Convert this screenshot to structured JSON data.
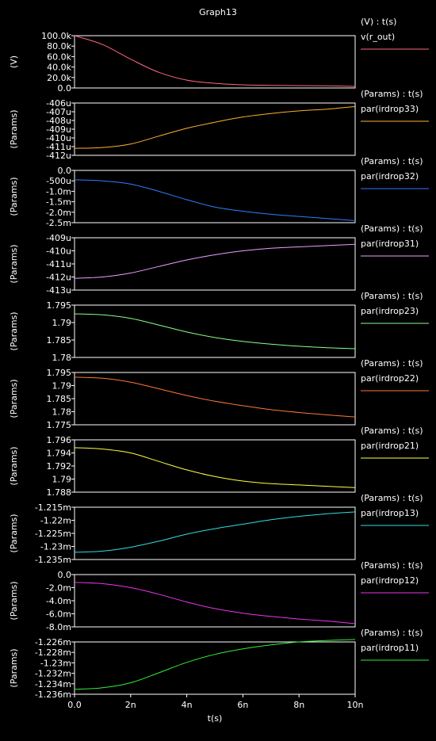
{
  "window": {
    "title": "Graph13"
  },
  "chart_data": {
    "type": "line",
    "title": "Graph13",
    "xlabel": "t(s)",
    "xlim": [
      0,
      10
    ],
    "x_ticks": [
      "0.0",
      "2n",
      "4n",
      "6n",
      "8n",
      "10n"
    ],
    "grid": false,
    "legend_position": "right",
    "panels": [
      {
        "header": "(V) : t(s)",
        "ylabel": "(V)",
        "series_name": "v(r_out)",
        "color": "#ff6680",
        "ylim": [
          0,
          100000
        ],
        "y_ticks": [
          "100.0k",
          "80.0k",
          "60.0k",
          "40.0k",
          "20.0k",
          "0.0"
        ],
        "x": [
          0,
          1,
          2,
          3,
          4,
          5,
          6,
          7,
          8,
          9,
          10
        ],
        "y": [
          100000,
          83000,
          55000,
          30000,
          15000,
          9000,
          6000,
          5000,
          4500,
          4200,
          3000
        ]
      },
      {
        "header": "(Params) : t(s)",
        "ylabel": "(Params)",
        "series_name": "par(irdrop33)",
        "color": "#ffb030",
        "ylim": [
          -412,
          -406
        ],
        "y_ticks": [
          "-406u",
          "-407u",
          "-408u",
          "-409u",
          "-410u",
          "-411u",
          "-412u"
        ],
        "x": [
          0,
          1,
          2,
          3,
          4,
          5,
          6,
          7,
          8,
          9,
          10
        ],
        "y": [
          -411.2,
          -411.1,
          -410.7,
          -409.8,
          -408.9,
          -408.2,
          -407.6,
          -407.2,
          -406.9,
          -406.7,
          -406.4
        ]
      },
      {
        "header": "(Params) : t(s)",
        "ylabel": "(Params)",
        "series_name": "par(irdrop32)",
        "color": "#2f7dff",
        "ylim": [
          -2.5,
          0.0
        ],
        "y_ticks": [
          "0.0",
          "-500u",
          "-1.0m",
          "-1.5m",
          "-2.0m",
          "-2.5m"
        ],
        "x": [
          0,
          1,
          2,
          3,
          4,
          5,
          6,
          7,
          8,
          9,
          10
        ],
        "y": [
          -0.45,
          -0.5,
          -0.65,
          -1.0,
          -1.4,
          -1.75,
          -1.95,
          -2.1,
          -2.2,
          -2.3,
          -2.4
        ]
      },
      {
        "header": "(Params) : t(s)",
        "ylabel": "(Params)",
        "series_name": "par(irdrop31)",
        "color": "#e8a0ff",
        "ylim": [
          -413,
          -409
        ],
        "y_ticks": [
          "-409u",
          "-410u",
          "-411u",
          "-412u",
          "-413u"
        ],
        "x": [
          0,
          1,
          2,
          3,
          4,
          5,
          6,
          7,
          8,
          9,
          10
        ],
        "y": [
          -412.1,
          -412.0,
          -411.7,
          -411.2,
          -410.7,
          -410.3,
          -410.0,
          -409.8,
          -409.7,
          -409.6,
          -409.5
        ]
      },
      {
        "header": "(Params) : t(s)",
        "ylabel": "(Params)",
        "series_name": "par(irdrop23)",
        "color": "#88ff88",
        "ylim": [
          1.78,
          1.795
        ],
        "y_ticks": [
          "1.795",
          "1.79",
          "1.785",
          "1.78"
        ],
        "x": [
          0,
          1,
          2,
          3,
          4,
          5,
          6,
          7,
          8,
          9,
          10
        ],
        "y": [
          1.7925,
          1.7922,
          1.7912,
          1.7893,
          1.7873,
          1.7857,
          1.7846,
          1.7838,
          1.7832,
          1.7828,
          1.7825
        ]
      },
      {
        "header": "(Params) : t(s)",
        "ylabel": "(Params)",
        "series_name": "par(irdrop22)",
        "color": "#ff7733",
        "ylim": [
          1.775,
          1.795
        ],
        "y_ticks": [
          "1.795",
          "1.79",
          "1.785",
          "1.78",
          "1.775"
        ],
        "x": [
          0,
          1,
          2,
          3,
          4,
          5,
          6,
          7,
          8,
          9,
          10
        ],
        "y": [
          1.7932,
          1.7928,
          1.7913,
          1.7888,
          1.7862,
          1.784,
          1.7823,
          1.7808,
          1.7797,
          1.7788,
          1.778
        ]
      },
      {
        "header": "(Params) : t(s)",
        "ylabel": "(Params)",
        "series_name": "par(irdrop21)",
        "color": "#ffff44",
        "ylim": [
          1.788,
          1.796
        ],
        "y_ticks": [
          "1.796",
          "1.794",
          "1.792",
          "1.79",
          "1.788"
        ],
        "x": [
          0,
          1,
          2,
          3,
          4,
          5,
          6,
          7,
          8,
          9,
          10
        ],
        "y": [
          1.7948,
          1.7946,
          1.794,
          1.7927,
          1.7914,
          1.7904,
          1.7897,
          1.7893,
          1.7891,
          1.7889,
          1.7887
        ]
      },
      {
        "header": "(Params) : t(s)",
        "ylabel": "(Params)",
        "series_name": "par(irdrop13)",
        "color": "#33dddd",
        "ylim": [
          -1.235,
          -1.215
        ],
        "y_ticks": [
          "-1.215m",
          "-1.22m",
          "-1.225m",
          "-1.23m",
          "-1.235m"
        ],
        "x": [
          0,
          1,
          2,
          3,
          4,
          5,
          6,
          7,
          8,
          9,
          10
        ],
        "y": [
          -1.2322,
          -1.2318,
          -1.2303,
          -1.228,
          -1.2253,
          -1.2232,
          -1.2215,
          -1.2198,
          -1.2185,
          -1.2175,
          -1.2168
        ]
      },
      {
        "header": "(Params) : t(s)",
        "ylabel": "(Params)",
        "series_name": "par(irdrop12)",
        "color": "#ee33ee",
        "ylim": [
          -8.0,
          0.0
        ],
        "y_ticks": [
          "0.0",
          "-2.0m",
          "-4.0m",
          "-6.0m",
          "-8.0m"
        ],
        "x": [
          0,
          1,
          2,
          3,
          4,
          5,
          6,
          7,
          8,
          9,
          10
        ],
        "y": [
          -1.2,
          -1.4,
          -2.0,
          -3.0,
          -4.2,
          -5.2,
          -5.9,
          -6.4,
          -6.8,
          -7.1,
          -7.5
        ]
      },
      {
        "header": "(Params) : t(s)",
        "ylabel": "(Params)",
        "series_name": "par(irdrop11)",
        "color": "#33ee33",
        "ylim": [
          -1.2365,
          -1.226
        ],
        "y_ticks": [
          "-1.226m",
          "-1.228m",
          "-1.23m",
          "-1.232m",
          "-1.234m",
          "-1.236m"
        ],
        "x": [
          0,
          1,
          2,
          3,
          4,
          5,
          6,
          7,
          8,
          9,
          10
        ],
        "y": [
          -1.2355,
          -1.2352,
          -1.2342,
          -1.2322,
          -1.2301,
          -1.2285,
          -1.2274,
          -1.2266,
          -1.226,
          -1.2257,
          -1.2255
        ]
      }
    ]
  }
}
